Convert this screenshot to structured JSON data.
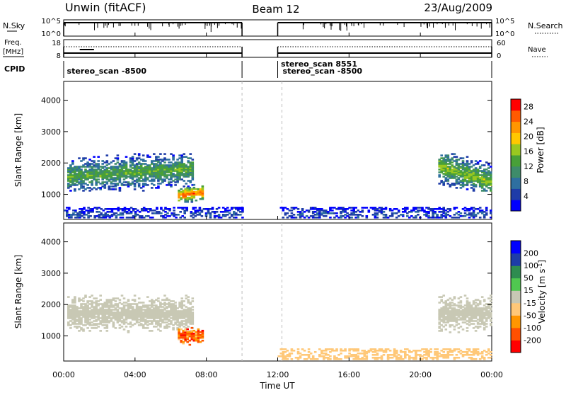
{
  "header": {
    "station": "Unwin (fitACF)",
    "beam": "Beam 12",
    "date": "23/Aug/2009"
  },
  "strip_nsky": {
    "left_label": "N.Sky",
    "right_label": "N.Search",
    "left_ticks": [
      "10^5",
      "10^0"
    ],
    "right_ticks": [
      "10^5",
      "10^0"
    ]
  },
  "strip_freq": {
    "left_label_line1": "Freq.",
    "left_label_line2": "[MHz]",
    "right_label": "Nave",
    "left_ticks": [
      "18",
      "8"
    ],
    "right_ticks": [
      "60",
      "0"
    ]
  },
  "strip_cpid": {
    "label": "CPID",
    "entries": [
      {
        "text": "stereo_scan -8500",
        "hour": 0.1
      },
      {
        "text": "stereo_scan 8551",
        "hour": 12.1
      },
      {
        "text": "stereo_scan -8500",
        "hour": 12.2
      }
    ]
  },
  "x_axis": {
    "label": "Time UT",
    "ticks": [
      "00:00",
      "04:00",
      "08:00",
      "12:00",
      "16:00",
      "20:00",
      "00:00"
    ],
    "tick_hours": [
      0,
      4,
      8,
      12,
      16,
      20,
      24
    ]
  },
  "chart_data": [
    {
      "type": "heatmap",
      "panel": "power",
      "ylabel": "Slant Range [km]",
      "yticks": [
        1000,
        2000,
        3000,
        4000
      ],
      "ylim": [
        200,
        4600
      ],
      "xlim": [
        0,
        24
      ],
      "colorbar_label": "Power [dB]",
      "colorbar_ticks": [
        4,
        8,
        12,
        16,
        20,
        24,
        28
      ],
      "colorbar_range": [
        0,
        30
      ],
      "colors": [
        "#0000ff",
        "#1e3ca8",
        "#2e6fa0",
        "#3e8c6a",
        "#48a038",
        "#9ac820",
        "#ffc800",
        "#ff9600",
        "#ff5a00",
        "#ff0000"
      ],
      "data_gap_hours": [
        10,
        12
      ],
      "regions": [
        {
          "name": "band-early",
          "t0": 0.2,
          "t1": 7.2,
          "r0": 1100,
          "r1": 2300,
          "ridge_start": 1550,
          "ridge_end": 1800,
          "peak": 14
        },
        {
          "name": "band-late",
          "t0": 21.0,
          "t1": 24.0,
          "r0": 1100,
          "r1": 2300,
          "ridge_start": 1900,
          "ridge_end": 1350,
          "peak": 16
        },
        {
          "name": "blob",
          "t0": 6.4,
          "t1": 7.8,
          "r0": 700,
          "r1": 1300,
          "ridge_start": 950,
          "ridge_end": 1050,
          "peak": 26
        },
        {
          "name": "near-range",
          "t0": 0.0,
          "t1": 24.0,
          "r0": 200,
          "r1": 600,
          "ridge_start": 350,
          "ridge_end": 350,
          "peak": 6
        }
      ]
    },
    {
      "type": "heatmap",
      "panel": "velocity",
      "ylabel": "Slant Range [km]",
      "yticks": [
        1000,
        2000,
        3000,
        4000
      ],
      "ylim": [
        200,
        4600
      ],
      "xlim": [
        0,
        24
      ],
      "colorbar_label": "Velocity [m s^-1]",
      "colorbar_ticks": [
        200,
        100,
        50,
        15,
        -15,
        -50,
        -100,
        -200
      ],
      "colorbar_range": [
        -250,
        250
      ],
      "colors": [
        "#ff0000",
        "#ff5000",
        "#ff9600",
        "#ffc878",
        "#c8c8b4",
        "#50c850",
        "#2e8c50",
        "#1e3ca8",
        "#0000ff"
      ],
      "data_gap_hours": [
        10,
        12
      ],
      "regions": [
        {
          "name": "band-early",
          "t0": 0.2,
          "t1": 7.2,
          "r0": 1100,
          "r1": 2300,
          "velocity": 0
        },
        {
          "name": "band-late",
          "t0": 21.0,
          "t1": 24.0,
          "r0": 1100,
          "r1": 2300,
          "velocity": 0
        },
        {
          "name": "blob",
          "t0": 6.4,
          "t1": 7.8,
          "r0": 700,
          "r1": 1300,
          "velocity": -140
        },
        {
          "name": "near-range",
          "t0": 12.0,
          "t1": 24.0,
          "r0": 200,
          "r1": 600,
          "velocity": -40
        }
      ]
    }
  ]
}
